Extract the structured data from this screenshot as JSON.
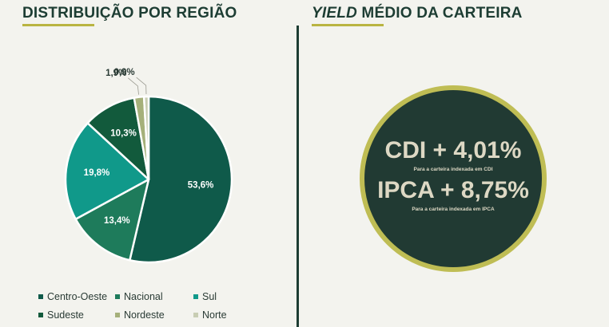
{
  "left_section": {
    "title": "DISTRIBUIÇÃO POR REGIÃO"
  },
  "right_section": {
    "title_italic": "YIELD",
    "title_rest": " MÉDIO DA CARTEIRA",
    "cdi_value": "CDI + 4,01%",
    "cdi_caption": "Para a carteira indexada em CDI",
    "ipca_value": "IPCA + 8,75%",
    "ipca_caption": "Para a carteira indexada em IPCA",
    "circle_color": "#213a33",
    "ring_color": "#bfbd54"
  },
  "chart_data": {
    "type": "pie",
    "title": "DISTRIBUIÇÃO POR REGIÃO",
    "slices": [
      {
        "name": "Centro-Oeste",
        "value": 53.6,
        "label": "53,6%",
        "color": "#0f5a4a"
      },
      {
        "name": "Nacional",
        "value": 13.4,
        "label": "13,4%",
        "color": "#1e7b5b"
      },
      {
        "name": "Sul",
        "value": 19.8,
        "label": "19,8%",
        "color": "#10998a"
      },
      {
        "name": "Sudeste",
        "value": 10.3,
        "label": "10,3%",
        "color": "#125a3c"
      },
      {
        "name": "Nordeste",
        "value": 1.9,
        "label": "1,9%",
        "color": "#a5b07a"
      },
      {
        "name": "Norte",
        "value": 0.9,
        "label": "0,9%",
        "color": "#c8cdb3"
      }
    ],
    "legend_position": "bottom"
  }
}
